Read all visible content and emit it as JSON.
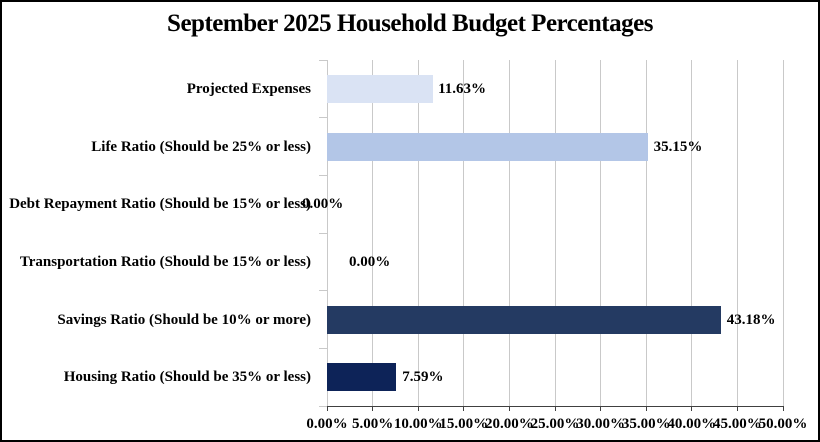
{
  "title": "September 2025 Household Budget Percentages",
  "chart_data": {
    "type": "bar",
    "orientation": "horizontal",
    "title": "September 2025 Household Budget Percentages",
    "xlabel": "",
    "ylabel": "",
    "xlim": [
      0,
      50
    ],
    "grid": true,
    "legend": false,
    "x_ticks": [
      "0.00%",
      "5.00%",
      "10.00%",
      "15.00%",
      "20.00%",
      "25.00%",
      "30.00%",
      "35.00%",
      "40.00%",
      "45.00%",
      "50.00%"
    ],
    "categories": [
      "Projected Expenses",
      "Life Ratio (Should be 25% or less)",
      "Debt Repayment Ratio (Should be 15% or less)",
      "Transportation Ratio (Should be 15% or less)",
      "Savings Ratio (Should be 10% or more)",
      "Housing Ratio (Should be 35% or less)"
    ],
    "values": [
      11.63,
      35.15,
      0.0,
      0.0,
      43.18,
      7.59
    ],
    "points": [
      {
        "label": "Projected Expenses",
        "value": 11.63,
        "value_label": "11.63%",
        "color": "#DAE3F4",
        "label_dx": 5
      },
      {
        "label": "Life Ratio (Should be 25% or less)",
        "value": 35.15,
        "value_label": "35.15%",
        "color": "#B3C6E7",
        "label_dx": 6
      },
      {
        "label": "Debt Repayment Ratio (Should be 15% or less)",
        "value": 0.0,
        "value_label": "0.00%",
        "color": null,
        "label_dx": -25
      },
      {
        "label": "Transportation Ratio (Should be 15% or less)",
        "value": 0.0,
        "value_label": "0.00%",
        "color": null,
        "label_dx": 22
      },
      {
        "label": "Savings Ratio (Should be 10% or more)",
        "value": 43.18,
        "value_label": "43.18%",
        "color": "#243A62",
        "label_dx": 6
      },
      {
        "label": "Housing Ratio (Should be 35% or less)",
        "value": 7.59,
        "value_label": "7.59%",
        "color": "#0D2358",
        "label_dx": 6
      }
    ],
    "grid_color": "#C9C9C9",
    "axis_color": "#404040",
    "background_color": "#FFFFFF",
    "border_color": "#000000"
  }
}
